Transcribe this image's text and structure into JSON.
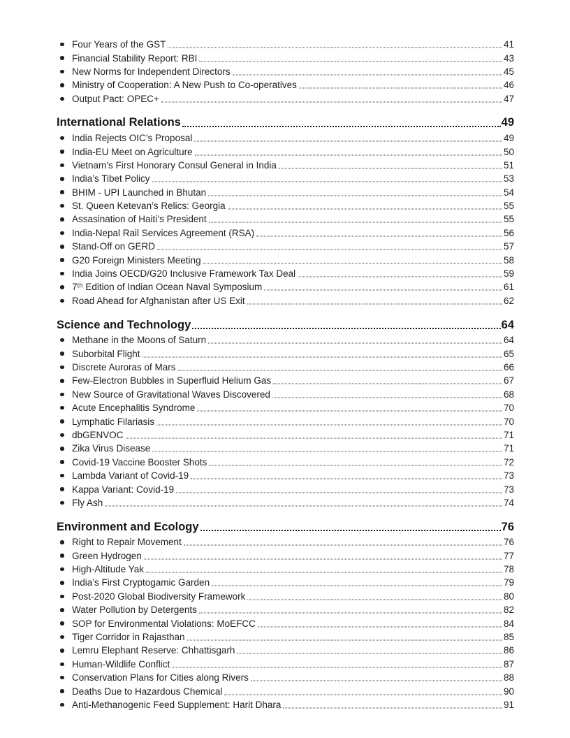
{
  "page": {
    "background": "#ffffff",
    "text_color": "#1f1f1f",
    "heading_color": "#161616",
    "leader_dot_color": "#474747"
  },
  "toc": {
    "sections": [
      {
        "title": null,
        "page": null,
        "items": [
          {
            "label": "Four Years of the GST",
            "page": "41"
          },
          {
            "label": "Financial Stability Report: RBI",
            "page": "43"
          },
          {
            "label": "New Norms for Independent Directors",
            "page": "45"
          },
          {
            "label": "Ministry of Cooperation: A New Push to Co-operatives",
            "page": "46"
          },
          {
            "label": "Output Pact: OPEC+",
            "page": "47"
          }
        ]
      },
      {
        "title": "International Relations",
        "page": "49",
        "items": [
          {
            "label": "India Rejects OIC’s Proposal",
            "page": "49"
          },
          {
            "label": "India-EU Meet on Agriculture",
            "page": "50"
          },
          {
            "label": "Vietnam’s First Honorary Consul General in India",
            "page": "51"
          },
          {
            "label": "India’s Tibet Policy",
            "page": "53"
          },
          {
            "label": "BHIM - UPI Launched in Bhutan",
            "page": "54"
          },
          {
            "label": "St. Queen Ketevan’s Relics: Georgia",
            "page": "55"
          },
          {
            "label": "Assasination of Haiti’s President",
            "page": "55"
          },
          {
            "label": "India-Nepal Rail Services Agreement (RSA)",
            "page": "56"
          },
          {
            "label": "Stand-Off on GERD",
            "page": "57"
          },
          {
            "label": "G20 Foreign Ministers Meeting",
            "page": "58"
          },
          {
            "label": "India Joins OECD/G20 Inclusive Framework Tax Deal",
            "page": "59"
          },
          {
            "label": "7ᵗʰ Edition of Indian Ocean Naval Symposium",
            "page": "61"
          },
          {
            "label": "Road Ahead for Afghanistan after US Exit",
            "page": "62"
          }
        ]
      },
      {
        "title": "Science and Technology",
        "page": "64",
        "items": [
          {
            "label": "Methane in the Moons of Saturn",
            "page": "64"
          },
          {
            "label": "Suborbital Flight",
            "page": "65"
          },
          {
            "label": "Discrete Auroras of Mars",
            "page": "66"
          },
          {
            "label": "Few-Electron Bubbles in Superfluid Helium Gas",
            "page": "67"
          },
          {
            "label": "New Source of Gravitational Waves Discovered",
            "page": "68"
          },
          {
            "label": "Acute Encephalitis Syndrome",
            "page": "70"
          },
          {
            "label": "Lymphatic Filariasis",
            "page": "70"
          },
          {
            "label": "dbGENVOC",
            "page": "71"
          },
          {
            "label": "Zika Virus Disease",
            "page": "71"
          },
          {
            "label": "Covid-19 Vaccine Booster Shots",
            "page": "72"
          },
          {
            "label": "Lambda Variant of Covid-19",
            "page": "73"
          },
          {
            "label": "Kappa Variant: Covid-19",
            "page": "73"
          },
          {
            "label": "Fly Ash",
            "page": "74"
          }
        ]
      },
      {
        "title": "Environment and Ecology",
        "page": "76",
        "items": [
          {
            "label": "Right to Repair Movement",
            "page": "76"
          },
          {
            "label": "Green Hydrogen",
            "page": "77"
          },
          {
            "label": "High-Altitude Yak",
            "page": "78"
          },
          {
            "label": "India’s First Cryptogamic Garden",
            "page": "79"
          },
          {
            "label": "Post-2020 Global Biodiversity Framework",
            "page": "80"
          },
          {
            "label": "Water Pollution by Detergents",
            "page": "82"
          },
          {
            "label": "SOP for Environmental Violations: MoEFCC",
            "page": "84"
          },
          {
            "label": "Tiger Corridor in Rajasthan",
            "page": "85"
          },
          {
            "label": "Lemru Elephant Reserve: Chhattisgarh",
            "page": "86"
          },
          {
            "label": "Human-Wildlife Conflict",
            "page": "87"
          },
          {
            "label": "Conservation Plans for Cities along Rivers",
            "page": "88"
          },
          {
            "label": "Deaths Due to Hazardous Chemical",
            "page": "90"
          },
          {
            "label": "Anti-Methanogenic Feed Supplement: Harit Dhara",
            "page": "91"
          }
        ]
      }
    ]
  }
}
